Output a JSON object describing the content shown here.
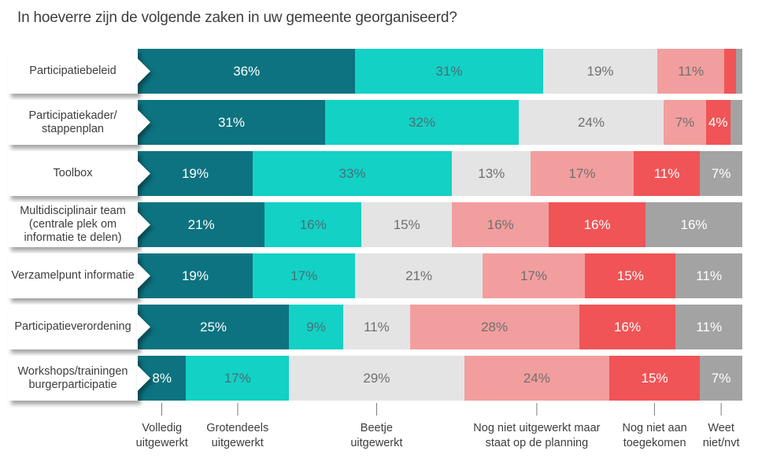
{
  "title": "In hoeverre zijn de volgende zaken in uw gemeente georganiseerd?",
  "chart_data": {
    "type": "bar",
    "subtype": "stacked-horizontal",
    "unit": "%",
    "xlim": [
      0,
      100
    ],
    "value_label_min": 4,
    "title": "In hoeverre zijn de volgende zaken in uw gemeente georganiseerd?",
    "categories": [
      [
        "Participatiebeleid"
      ],
      [
        "Participatiekader/",
        "stappenplan"
      ],
      [
        "Toolbox"
      ],
      [
        "Multidisciplinair team",
        "(centrale plek om",
        "informatie te delen)"
      ],
      [
        "Verzamelpunt informatie"
      ],
      [
        "Participatieverordening"
      ],
      [
        "Workshops/trainingen",
        "burgerparticipatie"
      ]
    ],
    "series": [
      {
        "name": "Volledig uitgewerkt",
        "color": "#0d7380",
        "label_color": "#ffffff",
        "values": [
          36,
          31,
          19,
          21,
          19,
          25,
          8
        ]
      },
      {
        "name": "Grotendeels uitgewerkt",
        "color": "#13d1c5",
        "label_color": "#4a6e78",
        "values": [
          31,
          32,
          33,
          16,
          17,
          9,
          17
        ]
      },
      {
        "name": "Beetje uitgewerkt",
        "color": "#e4e4e4",
        "label_color": "#6f6f6f",
        "values": [
          19,
          24,
          13,
          15,
          21,
          11,
          29
        ]
      },
      {
        "name": "Nog niet uitgewerkt maar staat op de planning",
        "color": "#f29e9e",
        "label_color": "#6f6f6f",
        "values": [
          11,
          7,
          17,
          16,
          17,
          28,
          24
        ]
      },
      {
        "name": "Nog niet aan toegekomen",
        "color": "#f05456",
        "label_color": "#ffffff",
        "values": [
          2,
          4,
          11,
          16,
          15,
          16,
          15
        ]
      },
      {
        "name": "Weet niet/nvt",
        "color": "#a3a3a3",
        "label_color": "#ffffff",
        "values": [
          1,
          2,
          7,
          16,
          11,
          11,
          7
        ]
      }
    ],
    "legend_position": "bottom"
  },
  "legend": {
    "items": [
      {
        "lines": [
          "Volledig",
          "uitgewerkt"
        ]
      },
      {
        "lines": [
          "Grotendeels",
          "uitgewerkt"
        ]
      },
      {
        "lines": [
          "Beetje",
          "uitgewerkt"
        ]
      },
      {
        "lines": [
          "Nog niet uitgewerkt maar",
          "staat op de planning"
        ]
      },
      {
        "lines": [
          "Nog niet aan",
          "toegekomen"
        ]
      },
      {
        "lines": [
          "Weet",
          "niet/nvt"
        ]
      }
    ]
  }
}
